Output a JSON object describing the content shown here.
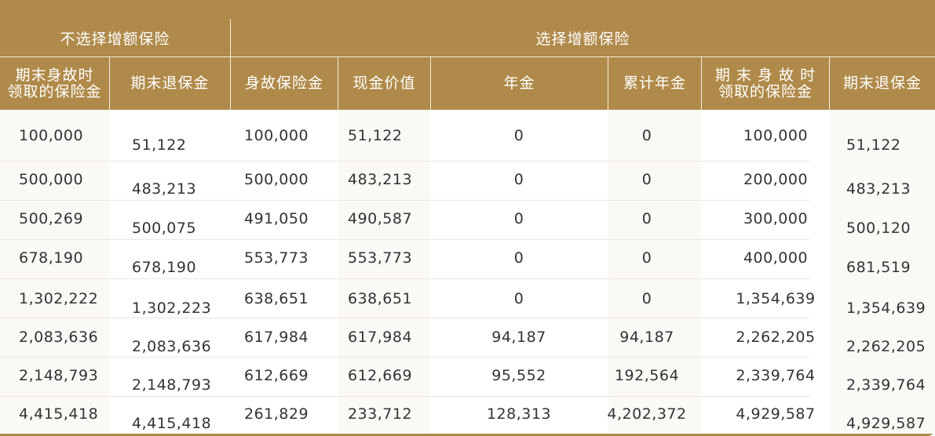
{
  "header": {
    "group_left": "不选择增额保险",
    "group_right": "选择增额保险",
    "columns": [
      {
        "line1": "期末身故时",
        "line2": "领取的保险金"
      },
      {
        "line1": "期末退保金",
        "line2": ""
      },
      {
        "line1": "身故保险金",
        "line2": ""
      },
      {
        "line1": "现金价值",
        "line2": ""
      },
      {
        "line1": "年金",
        "line2": ""
      },
      {
        "line1": "累计年金",
        "line2": ""
      },
      {
        "line1": "期 末 身 故 时",
        "line2": "领取的保险金"
      },
      {
        "line1": "期末退保金",
        "line2": ""
      }
    ]
  },
  "table": {
    "rows": [
      [
        "100,000",
        "51,122",
        "100,000",
        "51,122",
        "0",
        "0",
        "100,000",
        "51,122"
      ],
      [
        "500,000",
        "483,213",
        "500,000",
        "483,213",
        "0",
        "0",
        "200,000",
        "483,213"
      ],
      [
        "500,269",
        "500,075",
        "491,050",
        "490,587",
        "0",
        "0",
        "300,000",
        "500,120"
      ],
      [
        "678,190",
        "678,190",
        "553,773",
        "553,773",
        "0",
        "0",
        "400,000",
        "681,519"
      ],
      [
        "1,302,222",
        "1,302,223",
        "638,651",
        "638,651",
        "0",
        "0",
        "1,354,639",
        "1,354,639"
      ],
      [
        "2,083,636",
        "2,083,636",
        "617,984",
        "617,984",
        "94,187",
        "94,187",
        "2,262,205",
        "2,262,205"
      ],
      [
        "2,148,793",
        "2,148,793",
        "612,669",
        "612,669",
        "95,552",
        "192,564",
        "2,339,764",
        "2,339,764"
      ],
      [
        "4,415,418",
        "4,415,418",
        "261,829",
        "233,712",
        "128,313",
        "4,202,372",
        "4,929,587",
        "4,929,587"
      ]
    ]
  }
}
